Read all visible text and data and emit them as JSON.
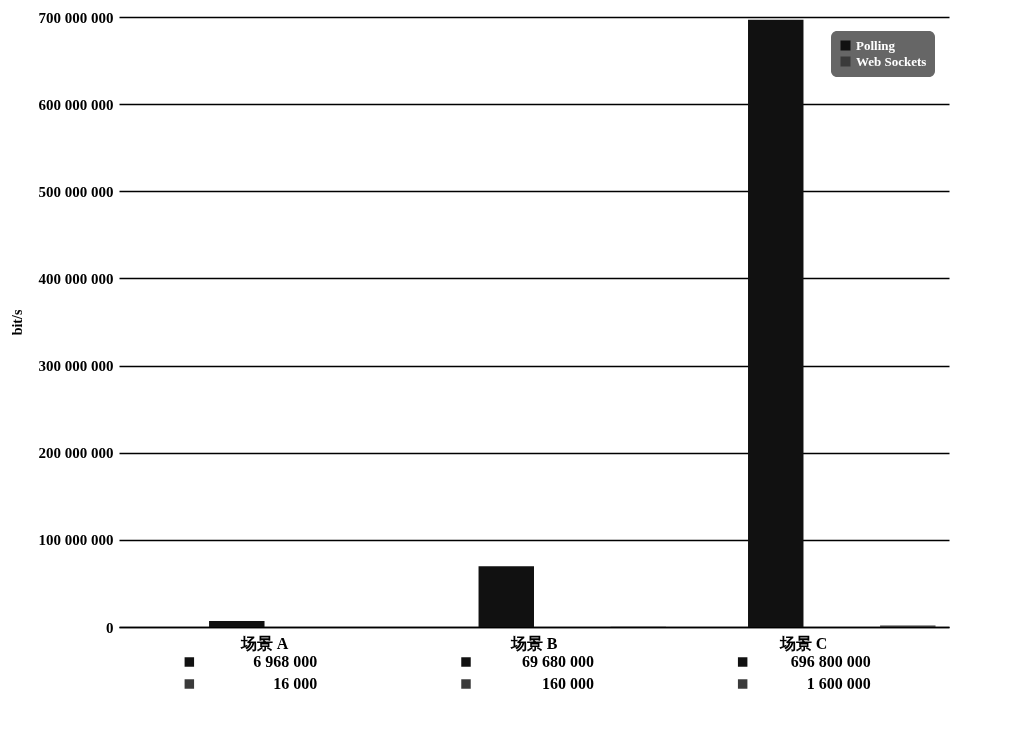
{
  "chart_data": {
    "type": "bar",
    "ylabel": "bit/s",
    "categories": [
      "场景 A",
      "场景 B",
      "场景 C"
    ],
    "series": [
      {
        "name": "Polling",
        "color": "#111111",
        "values": [
          6968000,
          69680000,
          696800000
        ]
      },
      {
        "name": "Web Sockets",
        "color": "#3a3a3a",
        "values": [
          16000,
          160000,
          1600000
        ]
      }
    ],
    "ylim": [
      0,
      700000000
    ],
    "yticks": [
      0,
      100000000,
      200000000,
      300000000,
      400000000,
      500000000,
      600000000,
      700000000
    ],
    "grid": "y",
    "legend": "top right",
    "data_labels": true
  }
}
